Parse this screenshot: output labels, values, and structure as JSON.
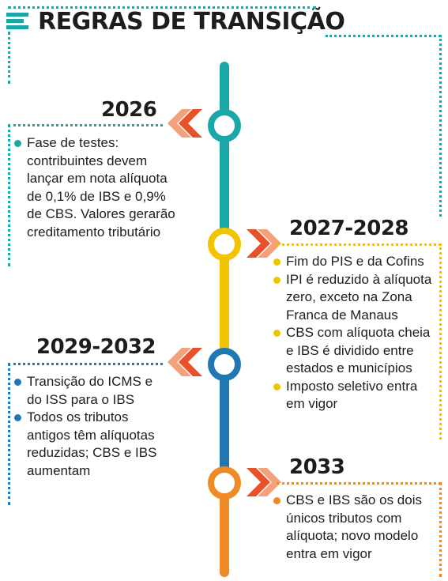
{
  "title": "REGRAS DE TRANSIÇÃO",
  "colors": {
    "teal": "#1aa7a8",
    "yellow": "#f2c400",
    "blue": "#1f78b4",
    "orange": "#f08a24",
    "chevron": "#e8512a"
  },
  "stages": [
    {
      "year": "2026",
      "color": "teal",
      "items": [
        "Fase de testes:\ncontribuintes devem\nlançar em nota alíquota\nde 0,1% de IBS e 0,9%\nde CBS. Valores gerarão\ncreditamento tributário"
      ]
    },
    {
      "year": "2027-2028",
      "color": "yellow",
      "items": [
        "Fim do PIS e da Cofins",
        "IPI é reduzido à alíquota\nzero, exceto na Zona\nFranca de Manaus",
        "CBS com alíquota cheia\ne IBS é dividido entre\nestados e municípios",
        "Imposto seletivo entra\nem vigor"
      ]
    },
    {
      "year": "2029-2032",
      "color": "blue",
      "items": [
        "Transição do ICMS e\ndo ISS para o IBS",
        "Todos os tributos\nantigos têm alíquotas\nreduzidas; CBS e IBS\naumentam"
      ]
    },
    {
      "year": "2033",
      "color": "orange",
      "items": [
        "CBS e IBS são os dois\núnicos tributos com\nalíquota; novo modelo\nentra em vigor"
      ]
    }
  ]
}
